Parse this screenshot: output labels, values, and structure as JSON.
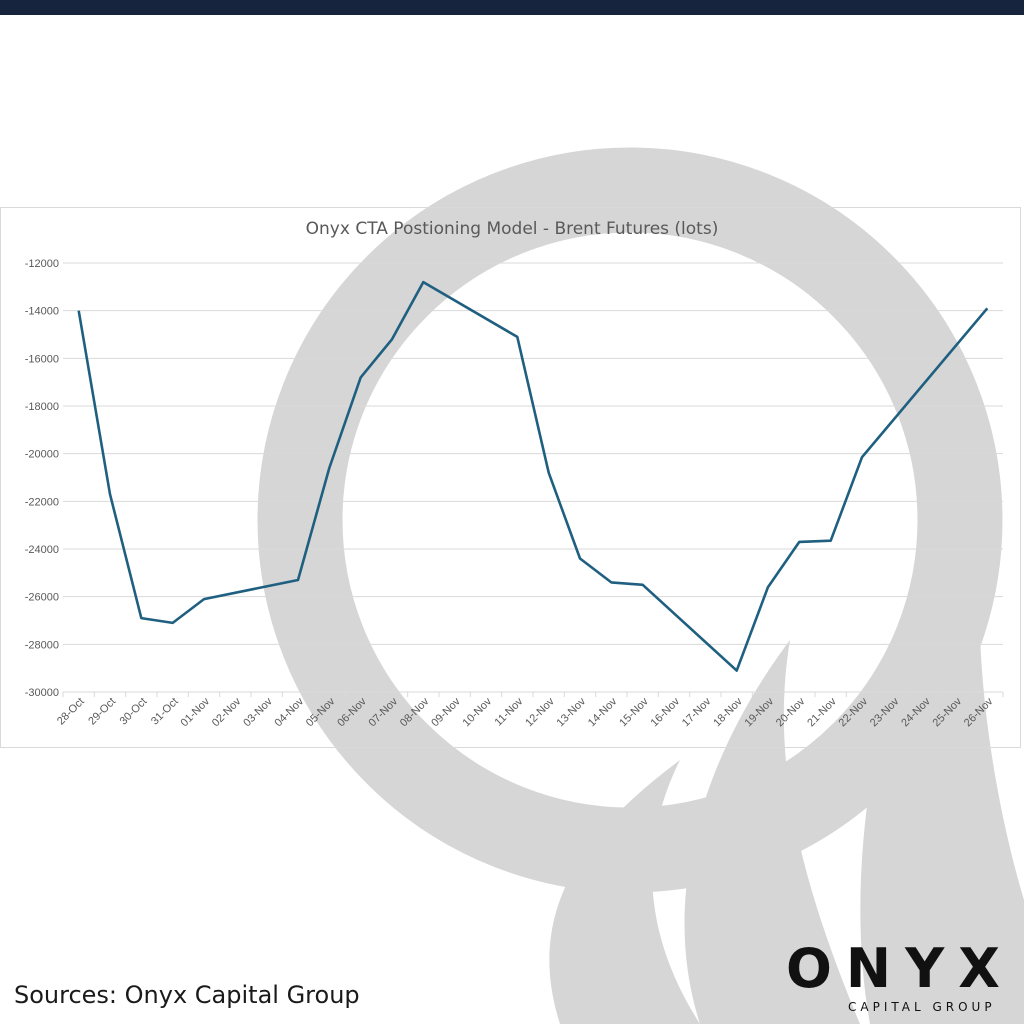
{
  "colors": {
    "topbar": "#17243e",
    "line": "#1f5f80",
    "grid": "#d9d9d9",
    "watermark": "#d6d6d6"
  },
  "sources": "Sources: Onyx Capital Group",
  "logo": {
    "word": "ONYX",
    "sub": "CAPITAL GROUP"
  },
  "chart_data": {
    "type": "line",
    "title": "Onyx CTA Postioning Model - Brent Futures (lots)",
    "xlabel": "",
    "ylabel": "",
    "ylim": [
      -30000,
      -12000
    ],
    "yticks": [
      -12000,
      -14000,
      -16000,
      -18000,
      -20000,
      -22000,
      -24000,
      -26000,
      -28000,
      -30000
    ],
    "grid": true,
    "legend": "none",
    "categories": [
      "28-Oct",
      "29-Oct",
      "30-Oct",
      "31-Oct",
      "01-Nov",
      "02-Nov",
      "03-Nov",
      "04-Nov",
      "05-Nov",
      "06-Nov",
      "07-Nov",
      "08-Nov",
      "09-Nov",
      "10-Nov",
      "11-Nov",
      "12-Nov",
      "13-Nov",
      "14-Nov",
      "15-Nov",
      "16-Nov",
      "17-Nov",
      "18-Nov",
      "19-Nov",
      "20-Nov",
      "21-Nov",
      "22-Nov",
      "23-Nov",
      "24-Nov",
      "25-Nov",
      "26-Nov"
    ],
    "series": [
      {
        "points": [
          [
            "28-Oct",
            -14000
          ],
          [
            "29-Oct",
            -21700
          ],
          [
            "30-Oct",
            -26900
          ],
          [
            "31-Oct",
            -27100
          ],
          [
            "01-Nov",
            -26100
          ],
          [
            "04-Nov",
            -25300
          ],
          [
            "05-Nov",
            -20600
          ],
          [
            "06-Nov",
            -16800
          ],
          [
            "07-Nov",
            -15200
          ],
          [
            "08-Nov",
            -12800
          ],
          [
            "11-Nov",
            -15100
          ],
          [
            "12-Nov",
            -20800
          ],
          [
            "13-Nov",
            -24400
          ],
          [
            "14-Nov",
            -25400
          ],
          [
            "15-Nov",
            -25500
          ],
          [
            "18-Nov",
            -29100
          ],
          [
            "19-Nov",
            -25600
          ],
          [
            "20-Nov",
            -23700
          ],
          [
            "21-Nov",
            -23650
          ],
          [
            "22-Nov",
            -20150
          ],
          [
            "26-Nov",
            -13900
          ]
        ]
      }
    ]
  }
}
